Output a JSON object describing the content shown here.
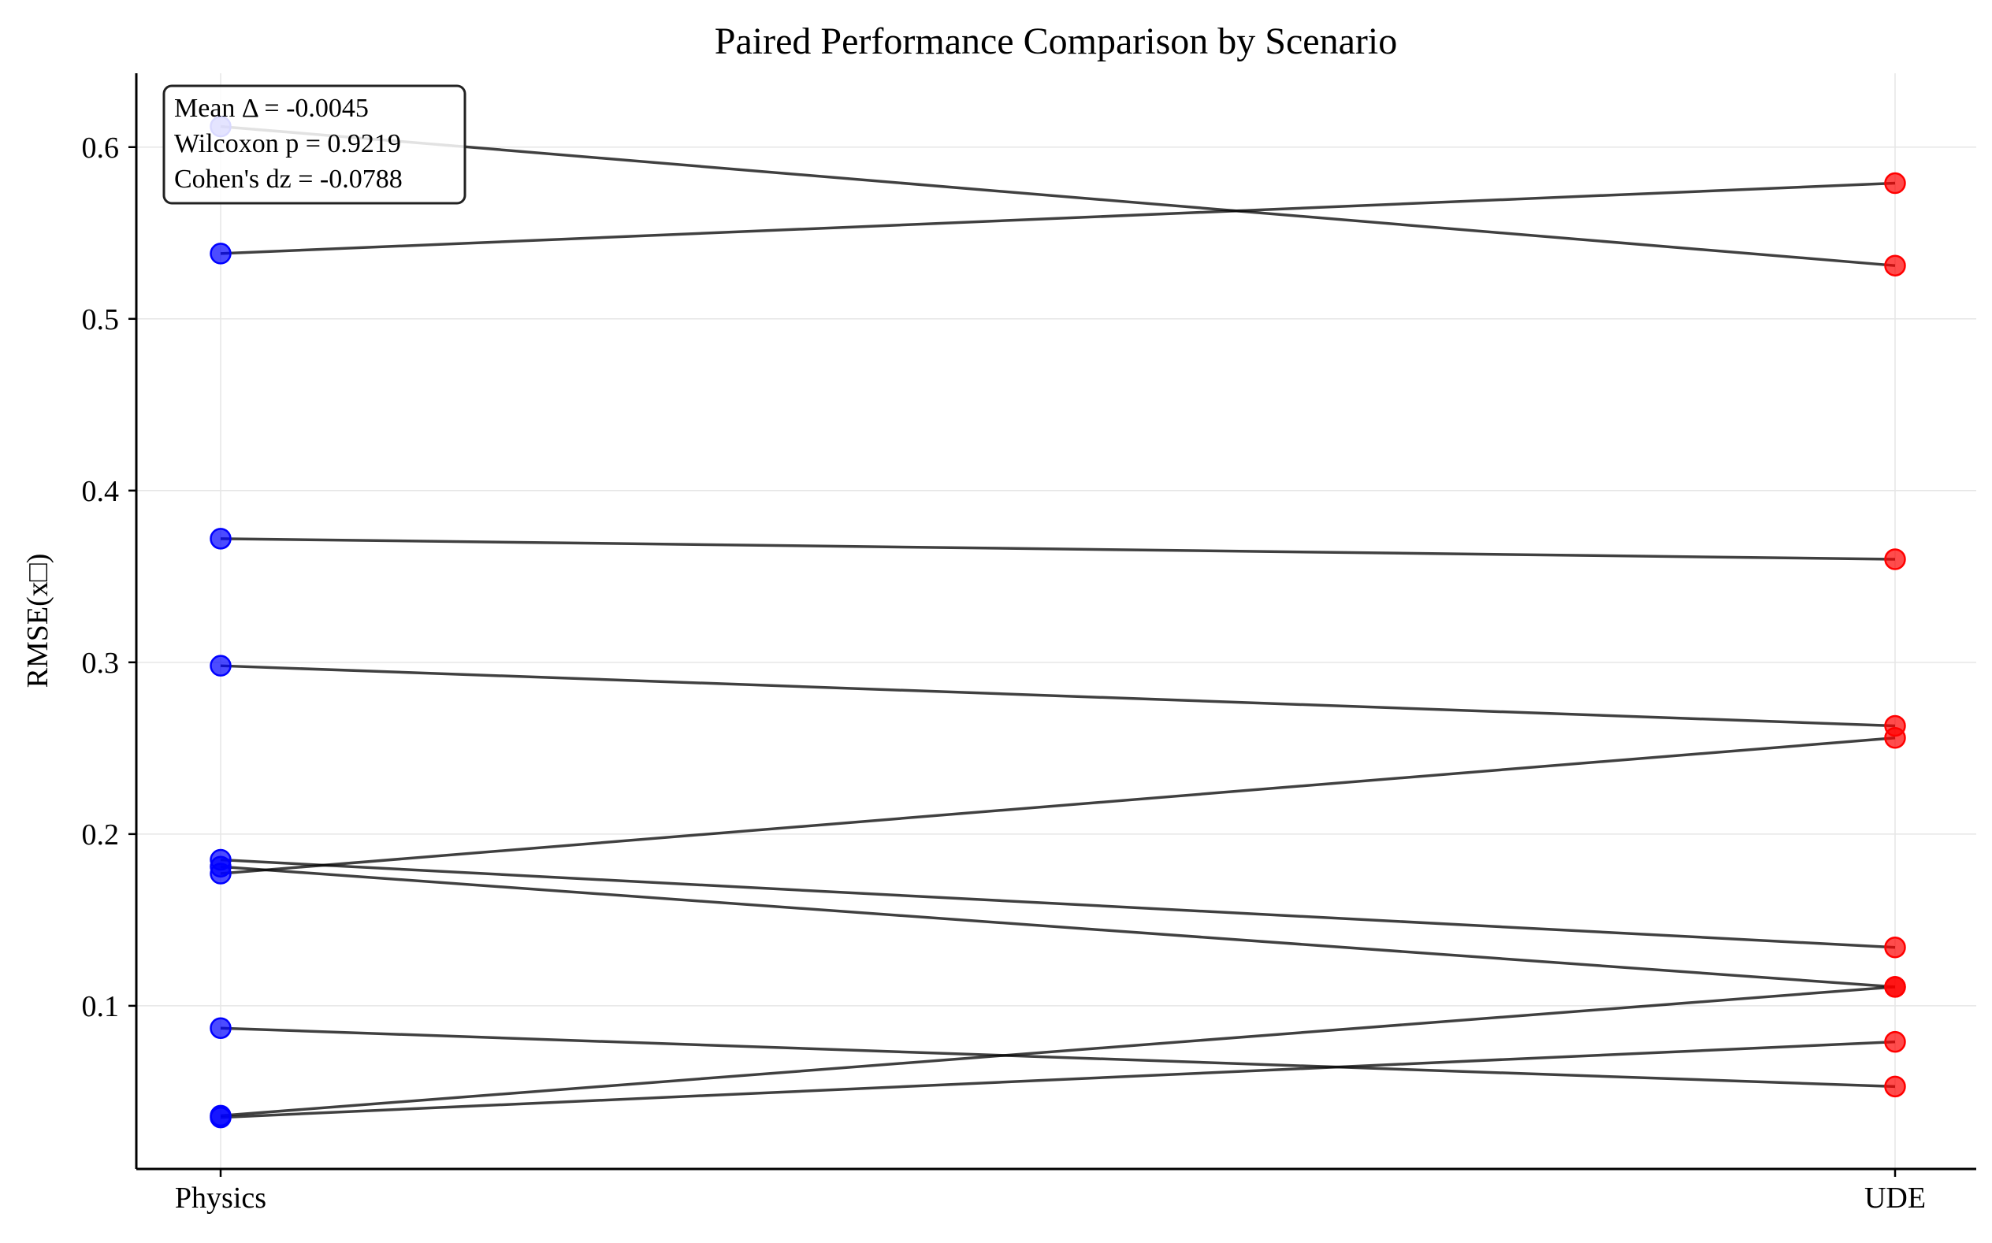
{
  "chart_data": {
    "type": "scatter",
    "title": "Paired Performance Comparison by Scenario",
    "xlabel": "",
    "ylabel": "RMSE(x□)",
    "categories": [
      "Physics",
      "UDE"
    ],
    "ylim": [
      0.005,
      0.643
    ],
    "yticks": [
      0.1,
      0.2,
      0.3,
      0.4,
      0.5,
      0.6
    ],
    "ytick_labels": [
      "0.1",
      "0.2",
      "0.3",
      "0.4",
      "0.5",
      "0.6"
    ],
    "grid": true,
    "colors": {
      "Physics": "#0000ff",
      "UDE": "#ff0000",
      "line": "#000000"
    },
    "pairs": [
      {
        "physics": 0.612,
        "ude": 0.531
      },
      {
        "physics": 0.538,
        "ude": 0.579
      },
      {
        "physics": 0.372,
        "ude": 0.36
      },
      {
        "physics": 0.298,
        "ude": 0.263
      },
      {
        "physics": 0.185,
        "ude": 0.134
      },
      {
        "physics": 0.181,
        "ude": 0.111
      },
      {
        "physics": 0.177,
        "ude": 0.256
      },
      {
        "physics": 0.087,
        "ude": 0.053
      },
      {
        "physics": 0.036,
        "ude": 0.111
      },
      {
        "physics": 0.035,
        "ude": 0.079
      }
    ],
    "annotation": {
      "lines": [
        "Mean Δ = -0.0045",
        "Wilcoxon p = 0.9219",
        "Cohen's dz = -0.0788"
      ],
      "placement": "top-left"
    }
  }
}
